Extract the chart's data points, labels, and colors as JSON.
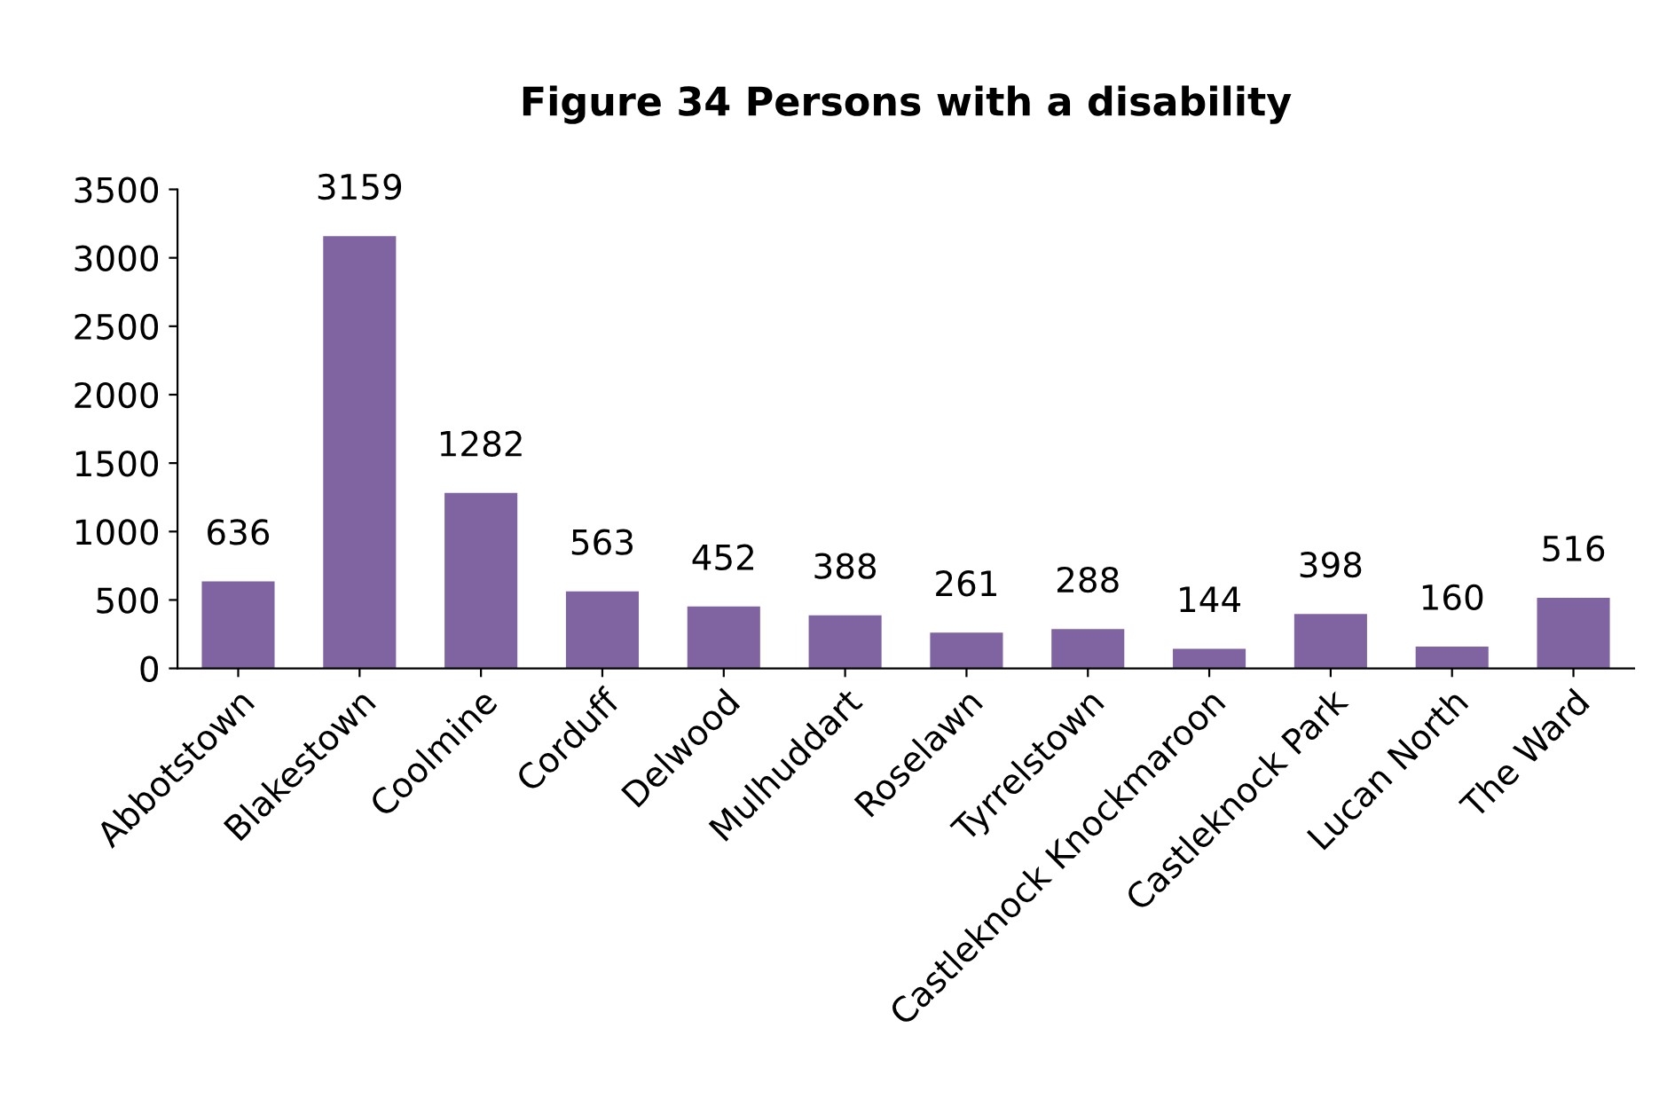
{
  "chart_data": {
    "type": "bar",
    "title": "Figure 34 Persons with a disability",
    "categories": [
      "Abbotstown",
      "Blakestown",
      "Coolmine",
      "Corduff",
      "Delwood",
      "Mulhuddart",
      "Roselawn",
      "Tyrrelstown",
      "Castleknock Knockmaroon",
      "Castleknock Park",
      "Lucan North",
      "The Ward"
    ],
    "values": [
      636,
      3159,
      1282,
      563,
      452,
      388,
      261,
      288,
      144,
      398,
      160,
      516
    ],
    "color": "#8064a2",
    "ylim": [
      0,
      3500
    ],
    "yticks": [
      0,
      500,
      1000,
      1500,
      2000,
      2500,
      3000,
      3500
    ],
    "grid": false,
    "data_labels": true
  }
}
